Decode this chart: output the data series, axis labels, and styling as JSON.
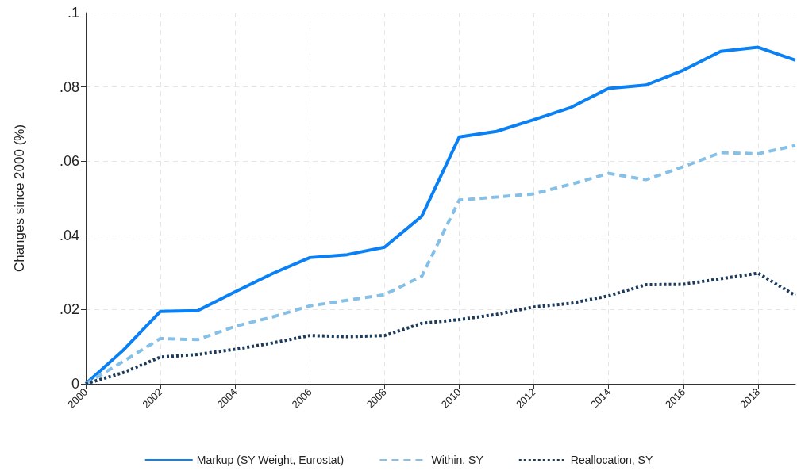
{
  "chart_data": {
    "type": "line",
    "ylabel": "Changes since 2000 (%)",
    "x": [
      2000,
      2001,
      2002,
      2003,
      2004,
      2005,
      2006,
      2007,
      2008,
      2009,
      2010,
      2011,
      2012,
      2013,
      2014,
      2015,
      2016,
      2017,
      2018,
      2019
    ],
    "series": [
      {
        "name": "Markup (SY Weight, Eurostat)",
        "color": "#0a80f5",
        "line_style": "solid",
        "values": [
          0,
          0.009,
          0.0195,
          0.0197,
          0.0248,
          0.0297,
          0.034,
          0.0348,
          0.0368,
          0.0452,
          0.0665,
          0.068,
          0.0712,
          0.0745,
          0.0796,
          0.0805,
          0.0845,
          0.0896,
          0.0907,
          0.0872
        ]
      },
      {
        "name": "Within, SY",
        "color": "#85c0e8",
        "line_style": "dashed",
        "values": [
          0,
          0.006,
          0.0122,
          0.0119,
          0.0155,
          0.018,
          0.021,
          0.0225,
          0.024,
          0.029,
          0.0495,
          0.0503,
          0.0512,
          0.0538,
          0.0567,
          0.055,
          0.0585,
          0.0623,
          0.062,
          0.0642
        ]
      },
      {
        "name": "Reallocation, SY",
        "color": "#1c3a5a",
        "line_style": "dotted",
        "values": [
          0,
          0.003,
          0.0072,
          0.0079,
          0.0093,
          0.011,
          0.013,
          0.0127,
          0.013,
          0.0163,
          0.0173,
          0.0187,
          0.0207,
          0.0217,
          0.0237,
          0.0267,
          0.0268,
          0.0283,
          0.0298,
          0.0238
        ]
      }
    ],
    "xlim": [
      2000,
      2019
    ],
    "xticks": [
      2000,
      2002,
      2004,
      2006,
      2008,
      2010,
      2012,
      2014,
      2016,
      2018
    ],
    "ylim": [
      0,
      0.1
    ],
    "yticks": [
      0,
      {
        "value": 0.02,
        "label": ".02"
      },
      {
        "value": 0.04,
        "label": ".04"
      },
      {
        "value": 0.06,
        "label": ".06"
      },
      {
        "value": 0.08,
        "label": ".08"
      },
      {
        "value": 0.1,
        "label": ".1"
      }
    ],
    "grid": true,
    "legend": "bottom",
    "marker": "none"
  }
}
